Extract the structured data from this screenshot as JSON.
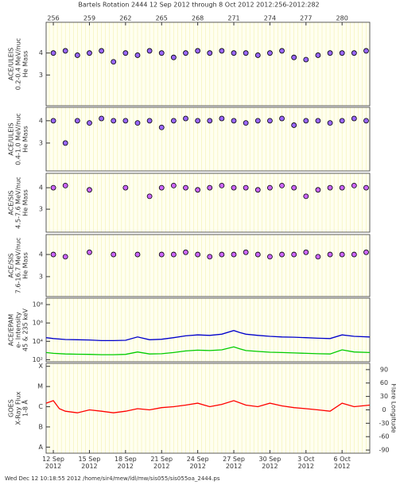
{
  "title": "Bartels Rotation 2444    12 Sep 2012 through 8 Oct 2012    2012:256-2012:282",
  "footer": "Wed Dec 12 10:18:55 2012    /home/sir4/mew/ldl/mw/sis055/sis055oa_2444.ps",
  "chart_data": [
    {
      "type": "scatter",
      "ylabel": [
        "ACE/ULEIS",
        "0.2-0.4 MeV/nuc",
        "He Mass"
      ],
      "xlim": [
        255.4,
        282.3
      ],
      "ylim": [
        1.6,
        5.4
      ],
      "yticks": [
        3,
        4
      ],
      "x2ticks": [
        256,
        259,
        262,
        265,
        268,
        271,
        274,
        277,
        280
      ],
      "series": [
        {
          "color": "#9966ff",
          "x": [
            256,
            257,
            258,
            259,
            260,
            261,
            262,
            263,
            264,
            265,
            266,
            267,
            268,
            269,
            270,
            271,
            272,
            273,
            274,
            275,
            276,
            277,
            278,
            279,
            280,
            281,
            282
          ],
          "values": [
            4.0,
            4.1,
            3.9,
            4.0,
            4.1,
            3.6,
            4.0,
            3.9,
            4.1,
            4.0,
            3.8,
            4.0,
            4.1,
            4.0,
            4.1,
            4.0,
            4.0,
            3.9,
            4.0,
            4.1,
            3.8,
            3.7,
            3.9,
            4.0,
            4.0,
            4.0,
            4.1
          ]
        }
      ]
    },
    {
      "type": "scatter",
      "ylabel": [
        "ACE/ULEIS",
        "0.4-1.0 MeV/nuc",
        "He Mass"
      ],
      "xlim": [
        255.4,
        282.3
      ],
      "ylim": [
        1.75,
        4.6
      ],
      "yticks": [
        3,
        4
      ],
      "series": [
        {
          "color": "#9966ff",
          "x": [
            256,
            257,
            258,
            259,
            260,
            261,
            262,
            263,
            264,
            265,
            266,
            267,
            268,
            269,
            270,
            271,
            272,
            273,
            274,
            275,
            276,
            277,
            278,
            279,
            280,
            281,
            282
          ],
          "values": [
            4.0,
            3.0,
            4.0,
            3.9,
            4.1,
            4.0,
            4.0,
            3.9,
            4.0,
            3.7,
            4.0,
            4.1,
            4.0,
            4.0,
            4.1,
            4.0,
            3.9,
            4.0,
            4.0,
            4.1,
            3.8,
            4.0,
            4.0,
            3.9,
            4.0,
            4.1,
            4.0
          ]
        }
      ]
    },
    {
      "type": "scatter",
      "ylabel": [
        "ACE/SIS",
        "4.5-7.6 MeV/nuc",
        "He Mass"
      ],
      "xlim": [
        255.4,
        282.3
      ],
      "ylim": [
        1.93,
        4.67
      ],
      "yticks": [
        3,
        4
      ],
      "series": [
        {
          "color": "#cc66ff",
          "x": [
            256,
            257,
            259,
            262,
            264,
            265,
            266,
            267,
            268,
            269,
            270,
            271,
            272,
            273,
            274,
            275,
            276,
            277,
            278,
            279,
            280,
            281,
            282
          ],
          "values": [
            4.0,
            4.1,
            3.9,
            4.0,
            3.6,
            4.0,
            4.1,
            4.0,
            3.9,
            4.0,
            4.1,
            4.0,
            4.0,
            3.9,
            4.0,
            4.1,
            4.0,
            3.6,
            3.9,
            4.0,
            4.0,
            4.1,
            4.0
          ]
        }
      ]
    },
    {
      "type": "scatter",
      "ylabel": [
        "ACE/SIS",
        "7.6-16.7 MeV/nuc",
        "He Mass"
      ],
      "xlim": [
        255.4,
        282.3
      ],
      "ylim": [
        2.1,
        4.9
      ],
      "yticks": [
        3,
        4
      ],
      "series": [
        {
          "color": "#cc66ff",
          "x": [
            256,
            257,
            259,
            261,
            263,
            265,
            266,
            267,
            268,
            269,
            270,
            271,
            272,
            273,
            274,
            275,
            276,
            277,
            278,
            279,
            280,
            281,
            282
          ],
          "values": [
            4.0,
            3.9,
            4.1,
            4.0,
            4.0,
            4.0,
            4.0,
            4.1,
            4.0,
            3.9,
            4.0,
            4.0,
            4.1,
            4.0,
            3.9,
            4.0,
            4.0,
            4.1,
            3.9,
            4.0,
            4.0,
            4.0,
            4.1
          ]
        }
      ]
    },
    {
      "type": "line",
      "ylabel": [
        "ACE/EPAM",
        "e- Intensity",
        "45 & 235 keV"
      ],
      "log": true,
      "xlim": [
        255.4,
        282.3
      ],
      "ylim": [
        60,
        500000000
      ],
      "yticks": [
        {
          "value": 100,
          "label": "10²"
        },
        {
          "value": 10000,
          "label": "10⁴"
        },
        {
          "value": 1000000,
          "label": "10⁶"
        },
        {
          "value": 100000000,
          "label": "10⁸"
        }
      ],
      "x": [
        255.4,
        256,
        257,
        258,
        259,
        260,
        261,
        262,
        263,
        264,
        265,
        266,
        267,
        268,
        269,
        270,
        271,
        271.5,
        272,
        273,
        274,
        275,
        276,
        277,
        278,
        279,
        280,
        281,
        282.3
      ],
      "series": [
        {
          "color": "#0000cc",
          "values": [
            25000,
            20000,
            16000,
            15000,
            14000,
            12000,
            12000,
            13000,
            30000,
            15000,
            17000,
            25000,
            40000,
            50000,
            45000,
            60000,
            150000,
            90000,
            60000,
            45000,
            35000,
            30000,
            28000,
            25000,
            22000,
            20000,
            50000,
            35000,
            30000
          ]
        },
        {
          "color": "#00cc00",
          "values": [
            600,
            500,
            420,
            400,
            380,
            350,
            350,
            380,
            700,
            420,
            450,
            600,
            900,
            1100,
            1000,
            1200,
            2500,
            1500,
            1000,
            800,
            650,
            600,
            550,
            500,
            450,
            420,
            1200,
            700,
            600
          ]
        }
      ]
    },
    {
      "type": "line",
      "ylabel": [
        "GOES",
        "X-Ray Flux",
        "1-8 Å"
      ],
      "y2label": "Flare Longitude",
      "log": true,
      "xlim": [
        255.4,
        282.3
      ],
      "ylim": [
        5e-09,
        0.00014
      ],
      "yticks": [
        {
          "value": 1e-08,
          "label": "A"
        },
        {
          "value": 1e-07,
          "label": "B"
        },
        {
          "value": 1e-06,
          "label": "C"
        },
        {
          "value": 1e-05,
          "label": "M"
        },
        {
          "value": 0.0001,
          "label": "X"
        }
      ],
      "y2lim": [
        -97,
        104
      ],
      "y2ticks": [
        -90,
        -60,
        -30,
        0,
        30,
        60,
        90
      ],
      "xticks": [
        {
          "value": 256,
          "label": "12 Sep\n2012"
        },
        {
          "value": 259,
          "label": "15 Sep\n2012"
        },
        {
          "value": 262,
          "label": "18 Sep\n2012"
        },
        {
          "value": 265,
          "label": "21 Sep\n2012"
        },
        {
          "value": 268,
          "label": "24 Sep\n2012"
        },
        {
          "value": 271,
          "label": "27 Sep\n2012"
        },
        {
          "value": 274,
          "label": "30 Sep\n2012"
        },
        {
          "value": 277,
          "label": "3 Oct\n2012"
        },
        {
          "value": 280,
          "label": "6 Oct\n2012"
        }
      ],
      "x": [
        255.4,
        256,
        256.5,
        257,
        258,
        259,
        260,
        261,
        262,
        263,
        264,
        265,
        266,
        267,
        268,
        269,
        270,
        271,
        272,
        273,
        274,
        275,
        276,
        277,
        278,
        279,
        280,
        281,
        282.3
      ],
      "series": [
        {
          "color": "#ff0000",
          "values": [
            1.5e-06,
            2e-06,
            8e-07,
            6e-07,
            5e-07,
            7e-07,
            6e-07,
            5e-07,
            6e-07,
            8e-07,
            7e-07,
            9e-07,
            1e-06,
            1.2e-06,
            1.5e-06,
            1e-06,
            1.3e-06,
            2e-06,
            1.2e-06,
            1e-06,
            1.5e-06,
            1.1e-06,
            9e-07,
            8e-07,
            7e-07,
            6e-07,
            1.5e-06,
            1e-06,
            1.2e-06
          ]
        }
      ]
    }
  ]
}
